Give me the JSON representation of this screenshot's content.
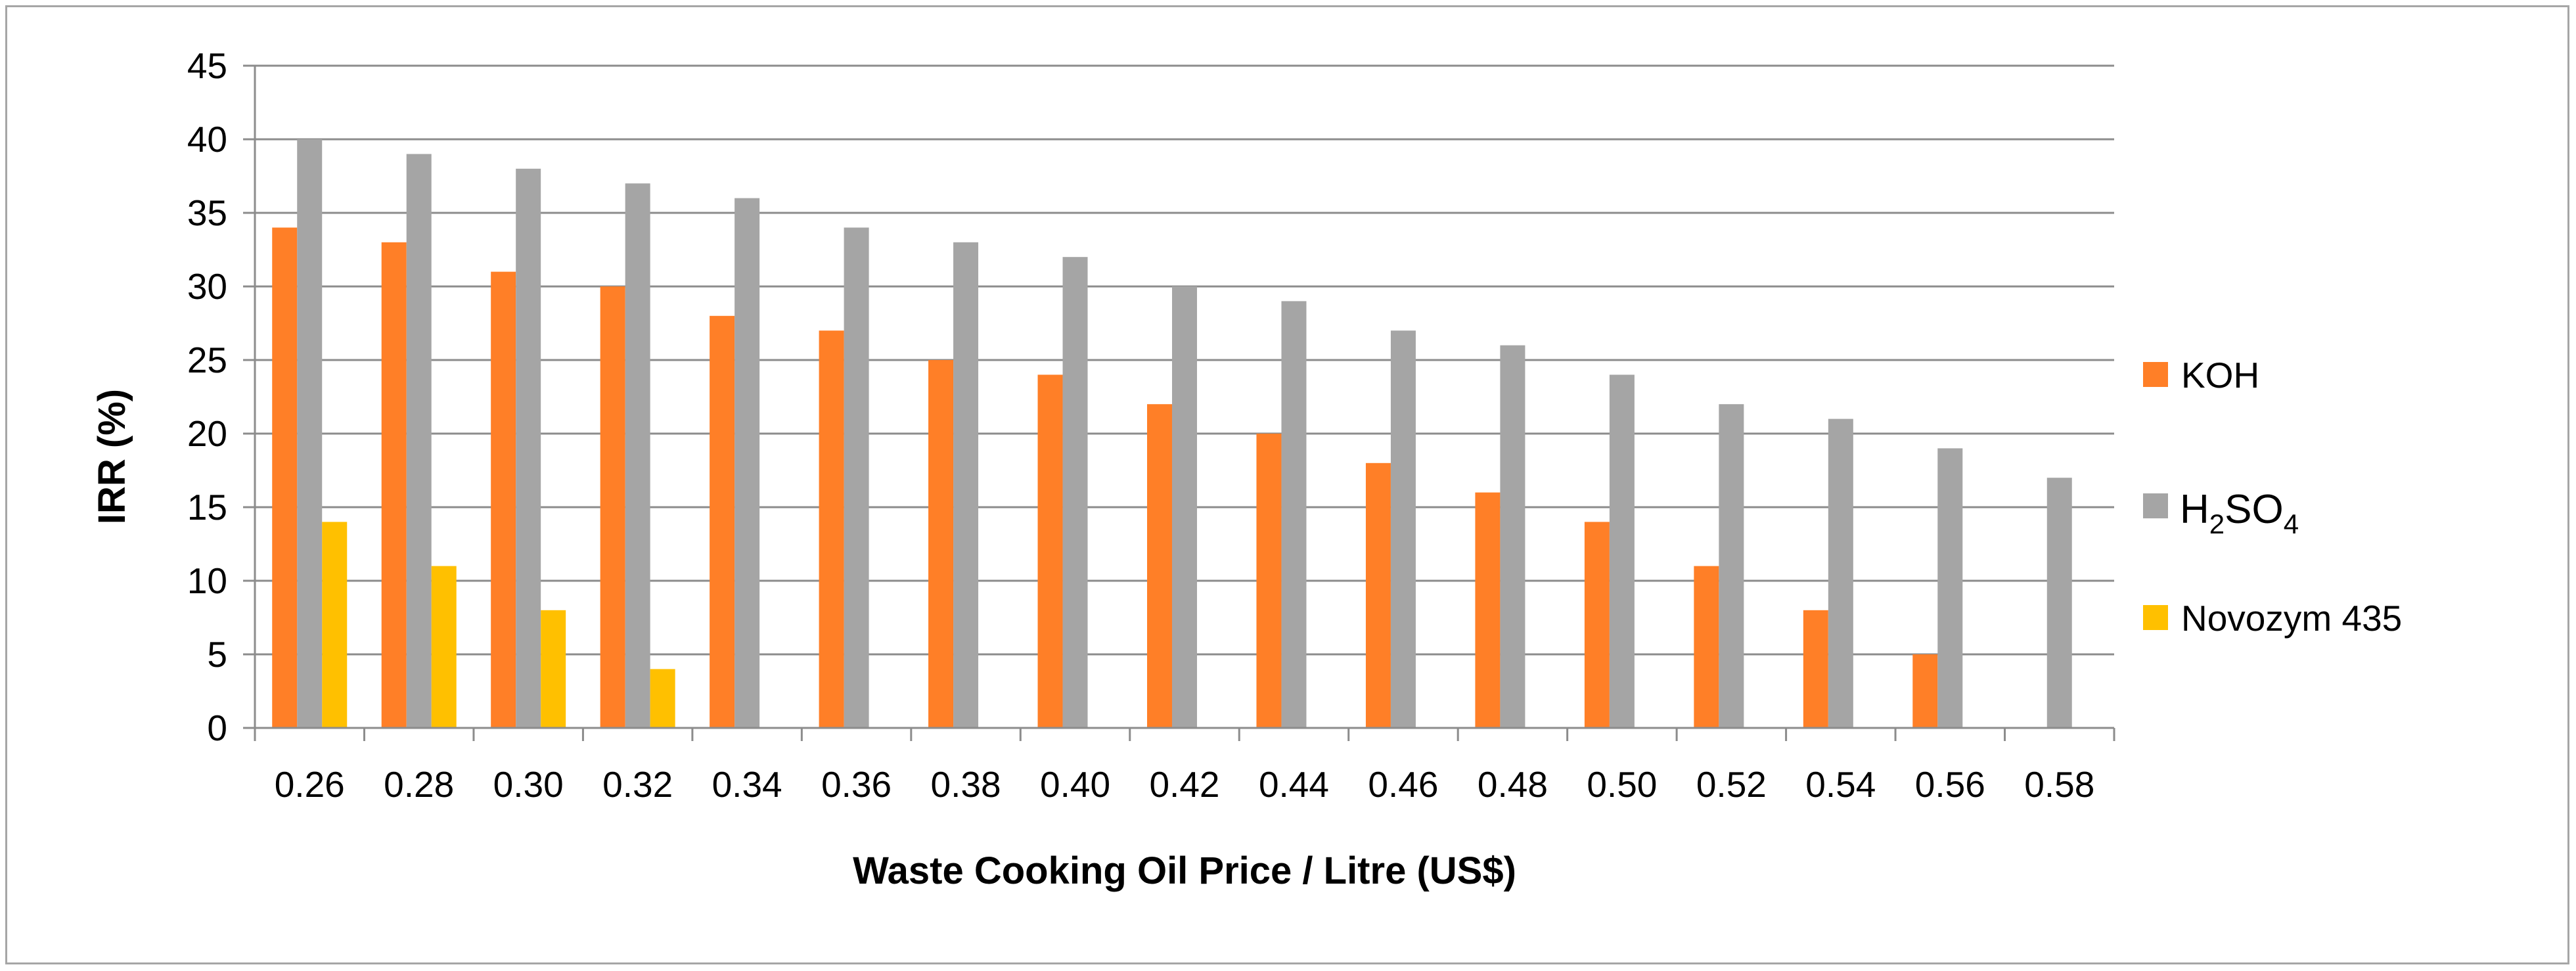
{
  "chart_data": {
    "type": "bar",
    "xlabel": "Waste Cooking Oil Price / Litre (US$)",
    "ylabel": "IRR (%)",
    "ylim": [
      0,
      45
    ],
    "yticks": [
      "0",
      "5",
      "10",
      "15",
      "20",
      "25",
      "30",
      "35",
      "40",
      "45"
    ],
    "grid": true,
    "legend_position": "right",
    "categories": [
      "0.26",
      "0.28",
      "0.30",
      "0.32",
      "0.34",
      "0.36",
      "0.38",
      "0.40",
      "0.42",
      "0.44",
      "0.46",
      "0.48",
      "0.50",
      "0.52",
      "0.54",
      "0.56",
      "0.58"
    ],
    "series": [
      {
        "name": "KOH",
        "color": "#FF7F27",
        "values": [
          34,
          33,
          31,
          30,
          28,
          27,
          25,
          24,
          22,
          20,
          18,
          16,
          14,
          11,
          8,
          5,
          null
        ]
      },
      {
        "name": "H2SO4",
        "name_parts": {
          "a": "H",
          "b": "2",
          "c": "SO",
          "d": "4"
        },
        "color": "#A5A5A5",
        "values": [
          40,
          39,
          38,
          37,
          36,
          34,
          33,
          32,
          30,
          29,
          27,
          26,
          24,
          22,
          21,
          19,
          17
        ]
      },
      {
        "name": "Novozym 435",
        "color": "#FFC000",
        "values": [
          14,
          11,
          8,
          4,
          null,
          null,
          null,
          null,
          null,
          null,
          null,
          null,
          null,
          null,
          null,
          null,
          null
        ]
      }
    ]
  }
}
